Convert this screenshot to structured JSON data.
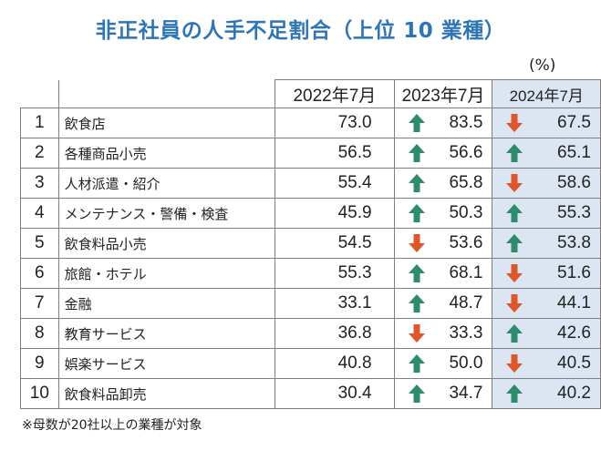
{
  "title": "非正社員の人手不足割合（上位 10 業種）",
  "unit": "(%)",
  "note": "※母数が20社以上の業種が対象",
  "colors": {
    "title": "#2e75b6",
    "up": "#2e8b6b",
    "down": "#e0562b",
    "highlight": "#dce6f2"
  },
  "chart_data": {
    "type": "table",
    "title": "非正社員の人手不足割合（上位 10 業種）",
    "unit": "(%)",
    "columns": [
      "2022年7月",
      "2023年7月",
      "2024年7月"
    ],
    "rows": [
      {
        "rank": "1",
        "name": "飲食店",
        "v2022": "73.0",
        "v2023": "83.5",
        "t2023": "up",
        "v2024": "67.5",
        "t2024": "down"
      },
      {
        "rank": "2",
        "name": "各種商品小売",
        "v2022": "56.5",
        "v2023": "56.6",
        "t2023": "up",
        "v2024": "65.1",
        "t2024": "up"
      },
      {
        "rank": "3",
        "name": "人材派遣・紹介",
        "v2022": "55.4",
        "v2023": "65.8",
        "t2023": "up",
        "v2024": "58.6",
        "t2024": "down"
      },
      {
        "rank": "4",
        "name": "メンテナンス・警備・検査",
        "v2022": "45.9",
        "v2023": "50.3",
        "t2023": "up",
        "v2024": "55.3",
        "t2024": "up"
      },
      {
        "rank": "5",
        "name": "飲食料品小売",
        "v2022": "54.5",
        "v2023": "53.6",
        "t2023": "down",
        "v2024": "53.8",
        "t2024": "up"
      },
      {
        "rank": "6",
        "name": "旅館・ホテル",
        "v2022": "55.3",
        "v2023": "68.1",
        "t2023": "up",
        "v2024": "51.6",
        "t2024": "down"
      },
      {
        "rank": "7",
        "name": "金融",
        "v2022": "33.1",
        "v2023": "48.7",
        "t2023": "up",
        "v2024": "44.1",
        "t2024": "down"
      },
      {
        "rank": "8",
        "name": "教育サービス",
        "v2022": "36.8",
        "v2023": "33.3",
        "t2023": "down",
        "v2024": "42.6",
        "t2024": "up"
      },
      {
        "rank": "9",
        "name": "娯楽サービス",
        "v2022": "40.8",
        "v2023": "50.0",
        "t2023": "up",
        "v2024": "40.5",
        "t2024": "down"
      },
      {
        "rank": "10",
        "name": "飲食料品卸売",
        "v2022": "30.4",
        "v2023": "34.7",
        "t2023": "up",
        "v2024": "40.2",
        "t2024": "up"
      }
    ]
  }
}
